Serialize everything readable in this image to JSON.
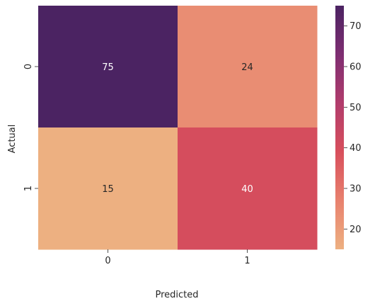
{
  "chart_data": {
    "type": "heatmap",
    "title": "",
    "xlabel": "Predicted",
    "ylabel": "Actual",
    "x_categories": [
      "0",
      "1"
    ],
    "y_categories": [
      "0",
      "1"
    ],
    "values": [
      [
        75,
        24
      ],
      [
        15,
        40
      ]
    ],
    "colorbar": {
      "min": 15,
      "max": 75,
      "ticks": [
        20,
        30,
        40,
        50,
        60,
        70
      ],
      "colormap": "flare",
      "stops": [
        "#edb081",
        "#e8816e",
        "#d84f5c",
        "#b13c6c",
        "#7e2e72",
        "#4b2362"
      ]
    },
    "legend": "right",
    "grid": false
  }
}
